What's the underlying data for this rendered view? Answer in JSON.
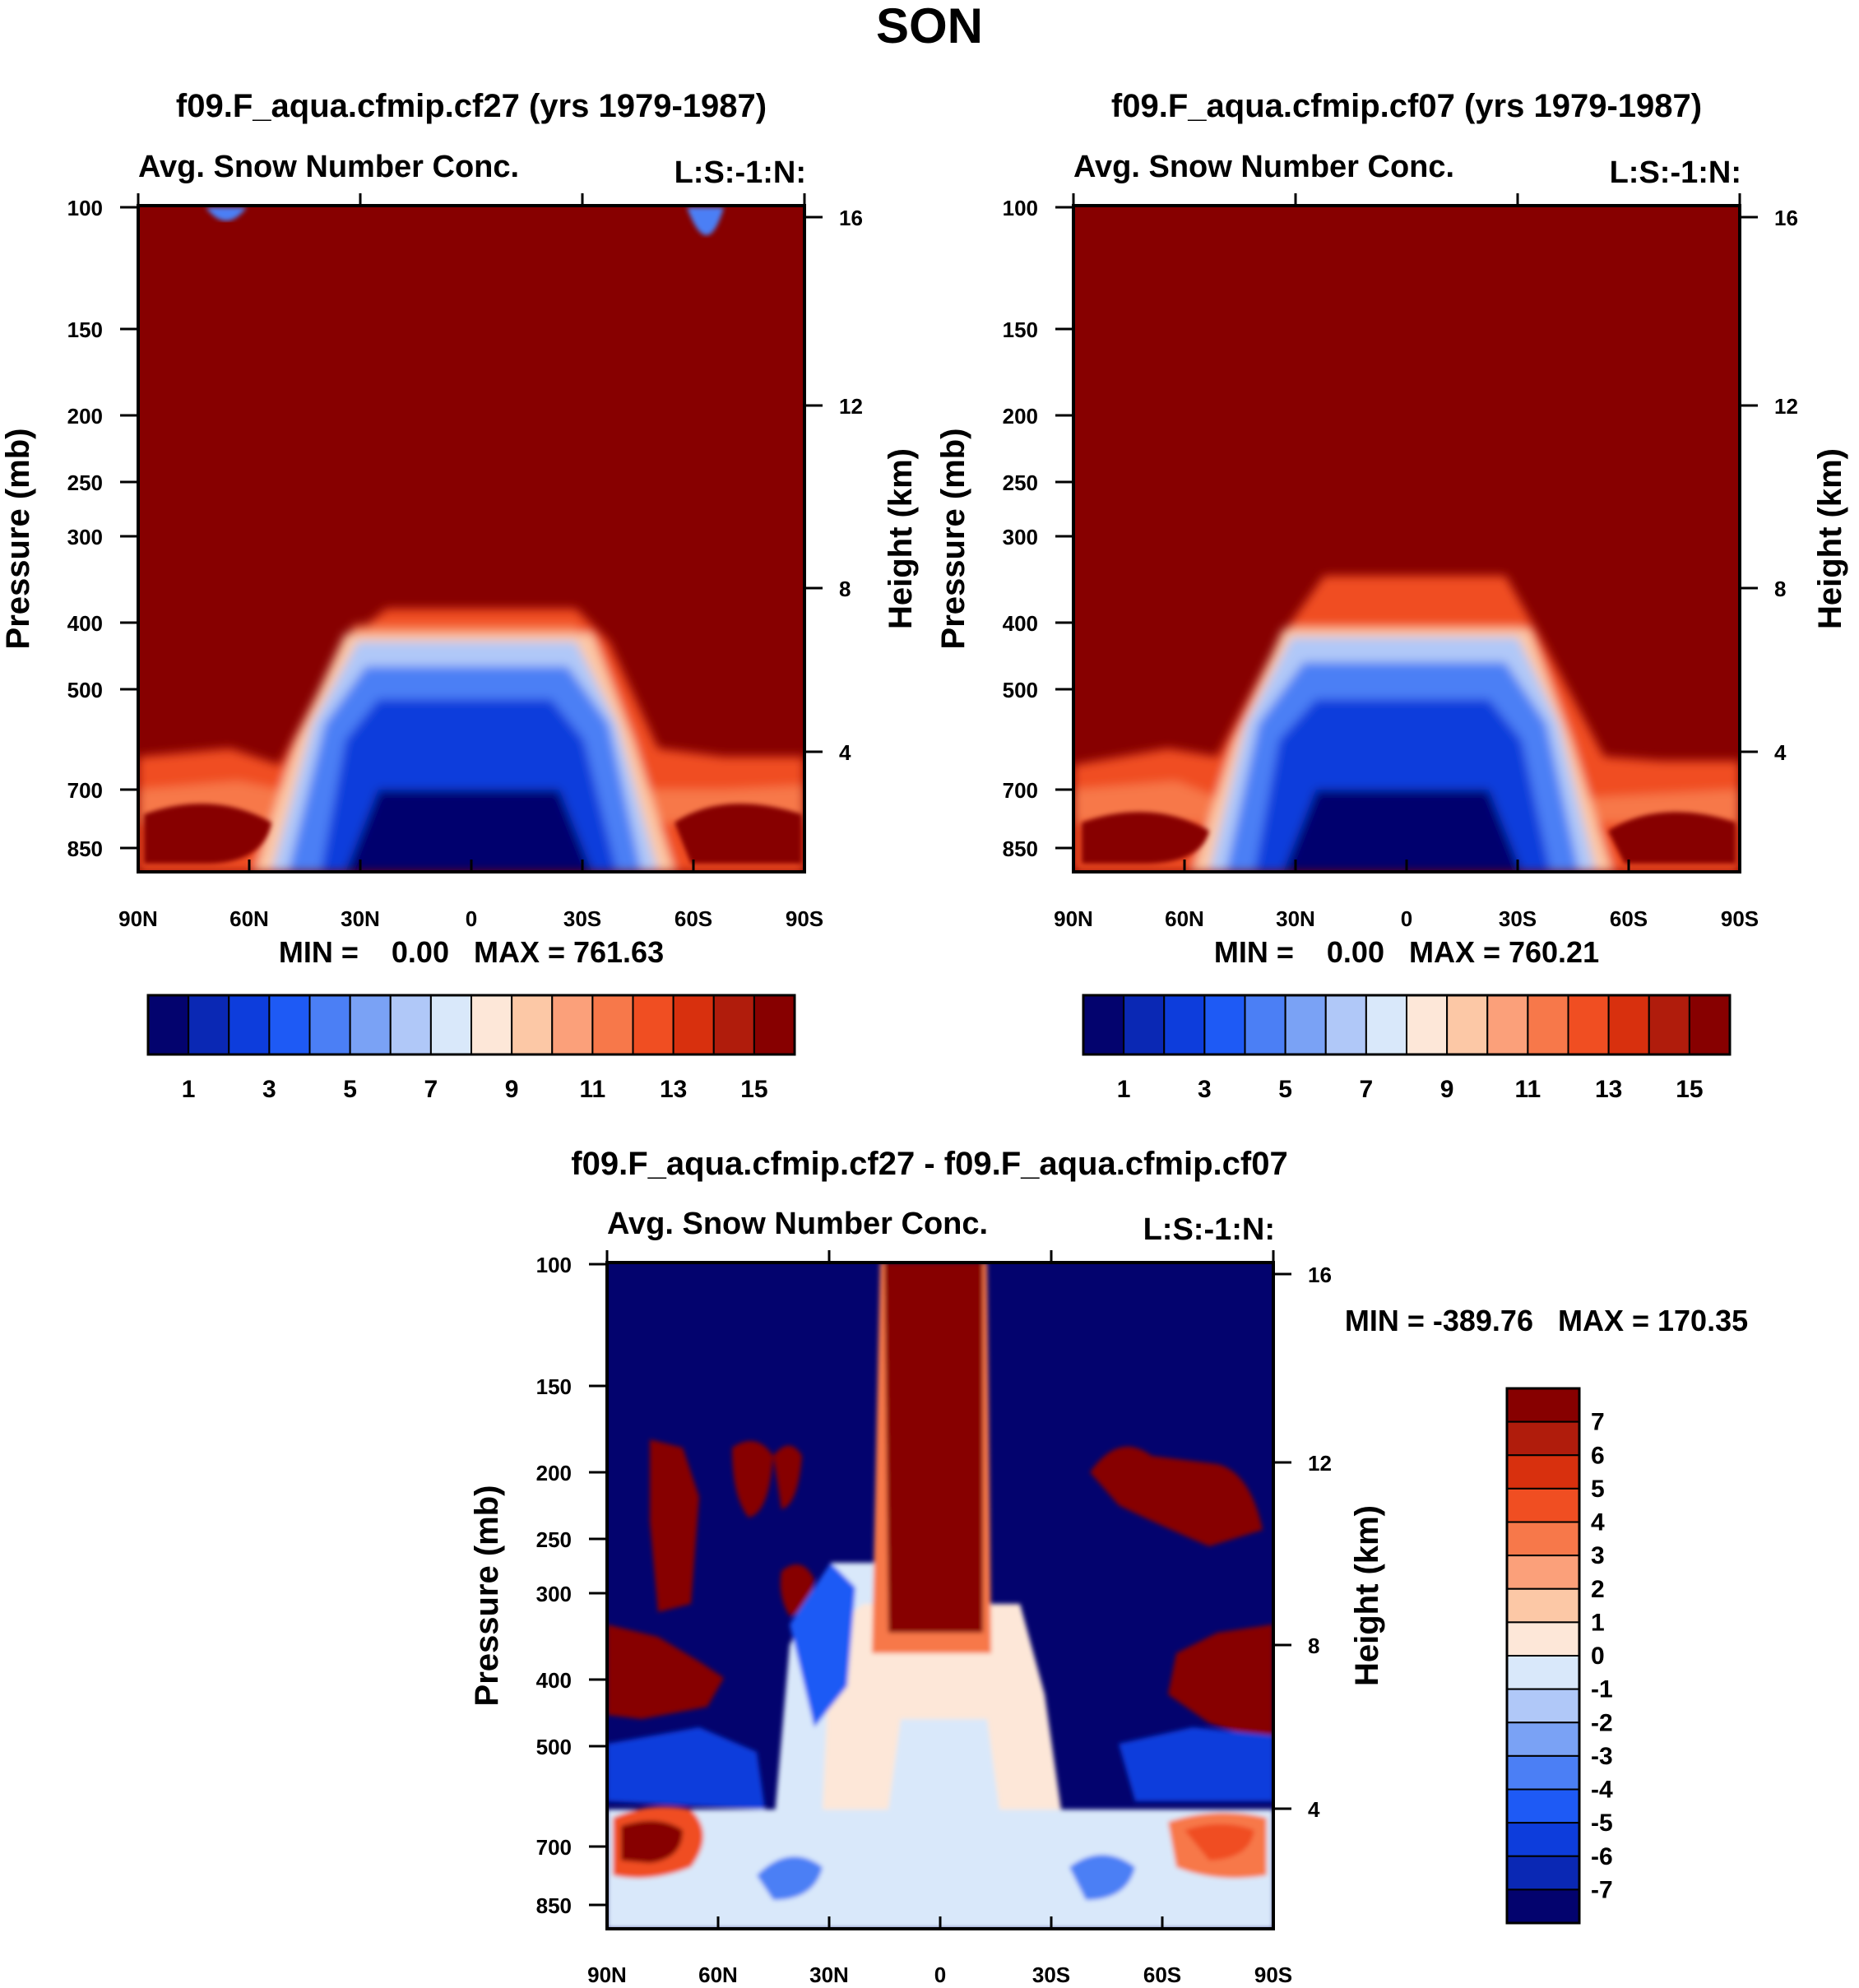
{
  "title": "SON",
  "chart_data": [
    {
      "type": "heatmap",
      "title": "f09.F_aqua.cfmip.cf27 (yrs 1979-1987)",
      "subtitle_left": "Avg. Snow Number Conc.",
      "subtitle_right": "L:S:-1:N:",
      "ylabel": "Pressure (mb)",
      "ylabel_right": "Height (km)",
      "x_ticks": [
        "90N",
        "60N",
        "30N",
        "0",
        "30S",
        "60S",
        "90S"
      ],
      "y_ticks": [
        "100",
        "150",
        "200",
        "250",
        "300",
        "400",
        "500",
        "700",
        "850"
      ],
      "y_right_ticks": [
        "16",
        "12",
        "8",
        "4"
      ],
      "stats": "MIN =    0.00   MAX = 761.63",
      "colorbar_labels": [
        "1",
        "3",
        "5",
        "7",
        "9",
        "11",
        "13",
        "15"
      ],
      "colorbar_colors": [
        "#03036e",
        "#0a28b4",
        "#0d3ddc",
        "#1e5af5",
        "#4b7ff5",
        "#7aa2f5",
        "#b0c8f8",
        "#d9e8fa",
        "#fde7d8",
        "#fcc8a6",
        "#fba07a",
        "#f7784a",
        "#f04e22",
        "#d8300e",
        "#b01c0c",
        "#870000"
      ]
    },
    {
      "type": "heatmap",
      "title": "f09.F_aqua.cfmip.cf07 (yrs 1979-1987)",
      "subtitle_left": "Avg. Snow Number Conc.",
      "subtitle_right": "L:S:-1:N:",
      "ylabel": "Pressure (mb)",
      "ylabel_right": "Height (km)",
      "x_ticks": [
        "90N",
        "60N",
        "30N",
        "0",
        "30S",
        "60S",
        "90S"
      ],
      "y_ticks": [
        "100",
        "150",
        "200",
        "250",
        "300",
        "400",
        "500",
        "700",
        "850"
      ],
      "y_right_ticks": [
        "16",
        "12",
        "8",
        "4"
      ],
      "stats": "MIN =    0.00   MAX = 760.21",
      "colorbar_labels": [
        "1",
        "3",
        "5",
        "7",
        "9",
        "11",
        "13",
        "15"
      ],
      "colorbar_colors": [
        "#03036e",
        "#0a28b4",
        "#0d3ddc",
        "#1e5af5",
        "#4b7ff5",
        "#7aa2f5",
        "#b0c8f8",
        "#d9e8fa",
        "#fde7d8",
        "#fcc8a6",
        "#fba07a",
        "#f7784a",
        "#f04e22",
        "#d8300e",
        "#b01c0c",
        "#870000"
      ]
    },
    {
      "type": "heatmap",
      "title": "f09.F_aqua.cfmip.cf27 - f09.F_aqua.cfmip.cf07",
      "subtitle_left": "Avg. Snow Number Conc.",
      "subtitle_right": "L:S:-1:N:",
      "ylabel": "Pressure (mb)",
      "ylabel_right": "Height (km)",
      "x_ticks": [
        "90N",
        "60N",
        "30N",
        "0",
        "30S",
        "60S",
        "90S"
      ],
      "y_ticks": [
        "100",
        "150",
        "200",
        "250",
        "300",
        "400",
        "500",
        "700",
        "850"
      ],
      "y_right_ticks": [
        "16",
        "12",
        "8",
        "4"
      ],
      "stats": "MIN = -389.76   MAX = 170.35",
      "colorbar_labels": [
        "7",
        "6",
        "5",
        "4",
        "3",
        "2",
        "1",
        "0",
        "-1",
        "-2",
        "-3",
        "-4",
        "-5",
        "-6",
        "-7"
      ],
      "colorbar_colors": [
        "#870000",
        "#b01c0c",
        "#d8300e",
        "#f04e22",
        "#f7784a",
        "#fba07a",
        "#fcc8a6",
        "#fde7d8",
        "#d9e8fa",
        "#b0c8f8",
        "#7aa2f5",
        "#4b7ff5",
        "#1e5af5",
        "#0d3ddc",
        "#0a28b4",
        "#03036e"
      ]
    }
  ]
}
